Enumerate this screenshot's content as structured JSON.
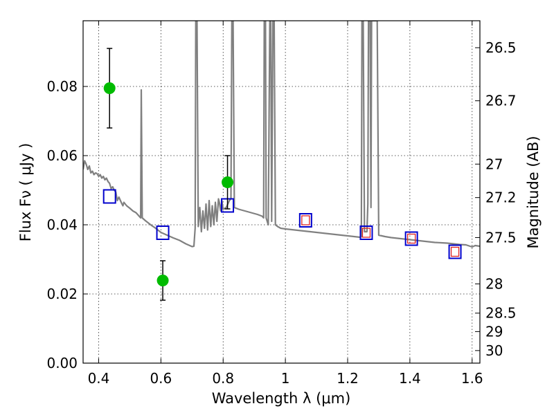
{
  "chart_data": {
    "type": "scatter",
    "title": "",
    "xlabel": "Wavelength  λ (μm)",
    "ylabel": "Flux  Fν  ( μJy )",
    "ylabel_right": "Magnitude (AB)",
    "xlim": [
      0.35,
      1.625
    ],
    "ylim": [
      0.0,
      0.099
    ],
    "grid": true,
    "x_ticks": [
      {
        "value": 0.4,
        "label": "0.4"
      },
      {
        "value": 0.6,
        "label": "0.6"
      },
      {
        "value": 0.8,
        "label": "0.8"
      },
      {
        "value": 1.0,
        "label": "1"
      },
      {
        "value": 1.2,
        "label": "1.2"
      },
      {
        "value": 1.4,
        "label": "1.4"
      },
      {
        "value": 1.6,
        "label": "1.6"
      }
    ],
    "y_ticks": [
      {
        "value": 0.0,
        "label": "0.00"
      },
      {
        "value": 0.02,
        "label": "0.02"
      },
      {
        "value": 0.04,
        "label": "0.04"
      },
      {
        "value": 0.06,
        "label": "0.06"
      },
      {
        "value": 0.08,
        "label": "0.08"
      }
    ],
    "right_ticks": [
      {
        "value": 26.5,
        "label": "26.5"
      },
      {
        "value": 26.7,
        "label": "26.7"
      },
      {
        "value": 27.0,
        "label": "27"
      },
      {
        "value": 27.2,
        "label": "27.2"
      },
      {
        "value": 27.5,
        "label": "27.5"
      },
      {
        "value": 28.0,
        "label": "28"
      },
      {
        "value": 28.5,
        "label": "28.5"
      },
      {
        "value": 29.0,
        "label": "29"
      },
      {
        "value": 30.0,
        "label": "30"
      }
    ],
    "colors": {
      "model": "#808080",
      "observed": "#00bb00",
      "model_box": "#0000cc",
      "model_inner": "#dd2222",
      "errorbar": "#000000"
    },
    "observed": [
      {
        "x": 0.435,
        "y": 0.0795,
        "err": 0.0115
      },
      {
        "x": 0.606,
        "y": 0.0239,
        "err": 0.0057
      },
      {
        "x": 0.814,
        "y": 0.0523,
        "err": 0.0077
      }
    ],
    "model_photometry": [
      {
        "x": 0.435,
        "y": 0.0482,
        "inner": false
      },
      {
        "x": 0.606,
        "y": 0.0377,
        "inner": false
      },
      {
        "x": 0.814,
        "y": 0.0456,
        "inner": false
      },
      {
        "x": 1.065,
        "y": 0.0413,
        "inner": true
      },
      {
        "x": 1.26,
        "y": 0.0377,
        "inner": true
      },
      {
        "x": 1.405,
        "y": 0.036,
        "inner": true
      },
      {
        "x": 1.545,
        "y": 0.0322,
        "inner": true
      }
    ],
    "model_spectrum": [
      [
        0.35,
        0.056
      ],
      [
        0.355,
        0.0585
      ],
      [
        0.36,
        0.0575
      ],
      [
        0.365,
        0.056
      ],
      [
        0.37,
        0.057
      ],
      [
        0.375,
        0.055
      ],
      [
        0.38,
        0.0555
      ],
      [
        0.385,
        0.0545
      ],
      [
        0.39,
        0.055
      ],
      [
        0.395,
        0.0548
      ],
      [
        0.4,
        0.054
      ],
      [
        0.405,
        0.0545
      ],
      [
        0.41,
        0.0535
      ],
      [
        0.415,
        0.054
      ],
      [
        0.42,
        0.053
      ],
      [
        0.425,
        0.0535
      ],
      [
        0.43,
        0.0525
      ],
      [
        0.435,
        0.052
      ],
      [
        0.44,
        0.0505
      ],
      [
        0.445,
        0.051
      ],
      [
        0.45,
        0.05
      ],
      [
        0.455,
        0.0495
      ],
      [
        0.46,
        0.047
      ],
      [
        0.465,
        0.048
      ],
      [
        0.47,
        0.047
      ],
      [
        0.475,
        0.046
      ],
      [
        0.478,
        0.0455
      ],
      [
        0.481,
        0.0465
      ],
      [
        0.49,
        0.0455
      ],
      [
        0.5,
        0.0448
      ],
      [
        0.51,
        0.044
      ],
      [
        0.52,
        0.0435
      ],
      [
        0.53,
        0.0425
      ],
      [
        0.535,
        0.042
      ],
      [
        0.537,
        0.079
      ],
      [
        0.54,
        0.042
      ],
      [
        0.55,
        0.0412
      ],
      [
        0.56,
        0.0405
      ],
      [
        0.57,
        0.0398
      ],
      [
        0.58,
        0.0392
      ],
      [
        0.59,
        0.0385
      ],
      [
        0.6,
        0.0378
      ],
      [
        0.62,
        0.037
      ],
      [
        0.64,
        0.0362
      ],
      [
        0.66,
        0.0355
      ],
      [
        0.68,
        0.0345
      ],
      [
        0.7,
        0.0337
      ],
      [
        0.706,
        0.0338
      ],
      [
        0.71,
        0.039
      ],
      [
        0.712,
        0.099
      ],
      [
        0.716,
        0.099
      ],
      [
        0.72,
        0.0395
      ],
      [
        0.725,
        0.045
      ],
      [
        0.73,
        0.038
      ],
      [
        0.735,
        0.044
      ],
      [
        0.74,
        0.039
      ],
      [
        0.745,
        0.046
      ],
      [
        0.75,
        0.0385
      ],
      [
        0.755,
        0.047
      ],
      [
        0.76,
        0.0395
      ],
      [
        0.765,
        0.0455
      ],
      [
        0.77,
        0.04
      ],
      [
        0.775,
        0.0465
      ],
      [
        0.78,
        0.041
      ],
      [
        0.785,
        0.0475
      ],
      [
        0.788,
        0.0465
      ],
      [
        0.792,
        0.044
      ],
      [
        0.796,
        0.047
      ],
      [
        0.8,
        0.0445
      ],
      [
        0.81,
        0.045
      ],
      [
        0.82,
        0.047
      ],
      [
        0.825,
        0.0475
      ],
      [
        0.828,
        0.099
      ],
      [
        0.832,
        0.099
      ],
      [
        0.836,
        0.045
      ],
      [
        0.85,
        0.0445
      ],
      [
        0.87,
        0.044
      ],
      [
        0.89,
        0.0435
      ],
      [
        0.91,
        0.043
      ],
      [
        0.925,
        0.0425
      ],
      [
        0.93,
        0.042
      ],
      [
        0.932,
        0.099
      ],
      [
        0.936,
        0.099
      ],
      [
        0.938,
        0.042
      ],
      [
        0.945,
        0.04
      ],
      [
        0.95,
        0.099
      ],
      [
        0.953,
        0.099
      ],
      [
        0.956,
        0.041
      ],
      [
        0.96,
        0.099
      ],
      [
        0.964,
        0.099
      ],
      [
        0.968,
        0.04
      ],
      [
        0.975,
        0.0395
      ],
      [
        0.985,
        0.039
      ],
      [
        1.0,
        0.0388
      ],
      [
        1.02,
        0.0386
      ],
      [
        1.04,
        0.0384
      ],
      [
        1.06,
        0.0382
      ],
      [
        1.08,
        0.038
      ],
      [
        1.1,
        0.0378
      ],
      [
        1.12,
        0.0376
      ],
      [
        1.14,
        0.0374
      ],
      [
        1.16,
        0.0372
      ],
      [
        1.18,
        0.037
      ],
      [
        1.2,
        0.0368
      ],
      [
        1.22,
        0.0366
      ],
      [
        1.24,
        0.0364
      ],
      [
        1.244,
        0.0365
      ],
      [
        1.246,
        0.099
      ],
      [
        1.25,
        0.099
      ],
      [
        1.254,
        0.038
      ],
      [
        1.262,
        0.038
      ],
      [
        1.265,
        0.046
      ],
      [
        1.267,
        0.099
      ],
      [
        1.272,
        0.099
      ],
      [
        1.275,
        0.045
      ],
      [
        1.277,
        0.099
      ],
      [
        1.282,
        0.099
      ],
      [
        1.295,
        0.099
      ],
      [
        1.3,
        0.037
      ],
      [
        1.32,
        0.0366
      ],
      [
        1.34,
        0.0363
      ],
      [
        1.36,
        0.0361
      ],
      [
        1.38,
        0.0359
      ],
      [
        1.4,
        0.0357
      ],
      [
        1.42,
        0.0355
      ],
      [
        1.44,
        0.0353
      ],
      [
        1.46,
        0.0351
      ],
      [
        1.48,
        0.0349
      ],
      [
        1.5,
        0.0348
      ],
      [
        1.52,
        0.0347
      ],
      [
        1.54,
        0.0345
      ],
      [
        1.56,
        0.0343
      ],
      [
        1.58,
        0.0342
      ],
      [
        1.6,
        0.0336
      ],
      [
        1.61,
        0.034
      ],
      [
        1.625,
        0.0338
      ]
    ]
  }
}
